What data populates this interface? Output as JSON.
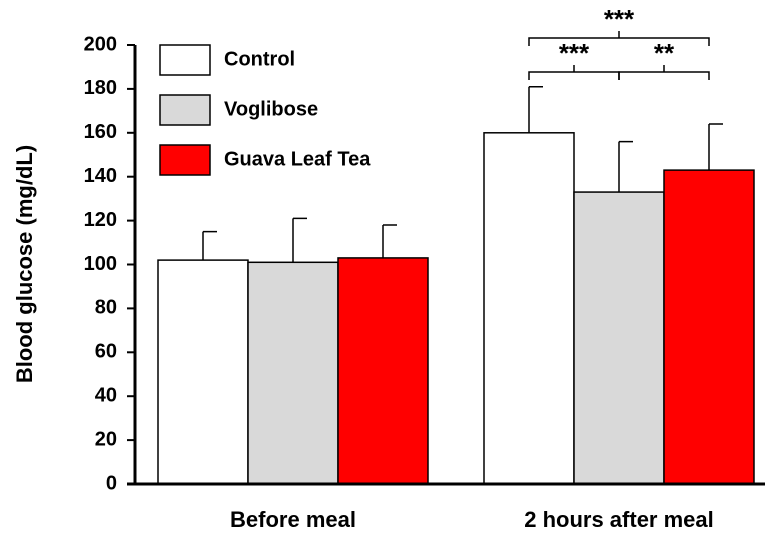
{
  "chart_data": {
    "type": "bar",
    "y_label": "Blood glucose (mg/dL)",
    "categories": [
      "Before meal",
      "2 hours after meal"
    ],
    "series": [
      {
        "name": "Control",
        "color": "#ffffff",
        "values": [
          102,
          160
        ],
        "errors": [
          13,
          21
        ]
      },
      {
        "name": "Voglibose",
        "color": "#d9d9d9",
        "values": [
          101,
          133
        ],
        "errors": [
          20,
          23
        ]
      },
      {
        "name": "Guava Leaf Tea",
        "color": "#ff0000",
        "values": [
          103,
          143
        ],
        "errors": [
          15,
          21
        ]
      }
    ],
    "ylim": [
      0,
      200
    ],
    "yticks": [
      0,
      20,
      40,
      60,
      80,
      100,
      120,
      140,
      160,
      180,
      200
    ],
    "annotations": [
      "***",
      "**",
      "***"
    ]
  }
}
